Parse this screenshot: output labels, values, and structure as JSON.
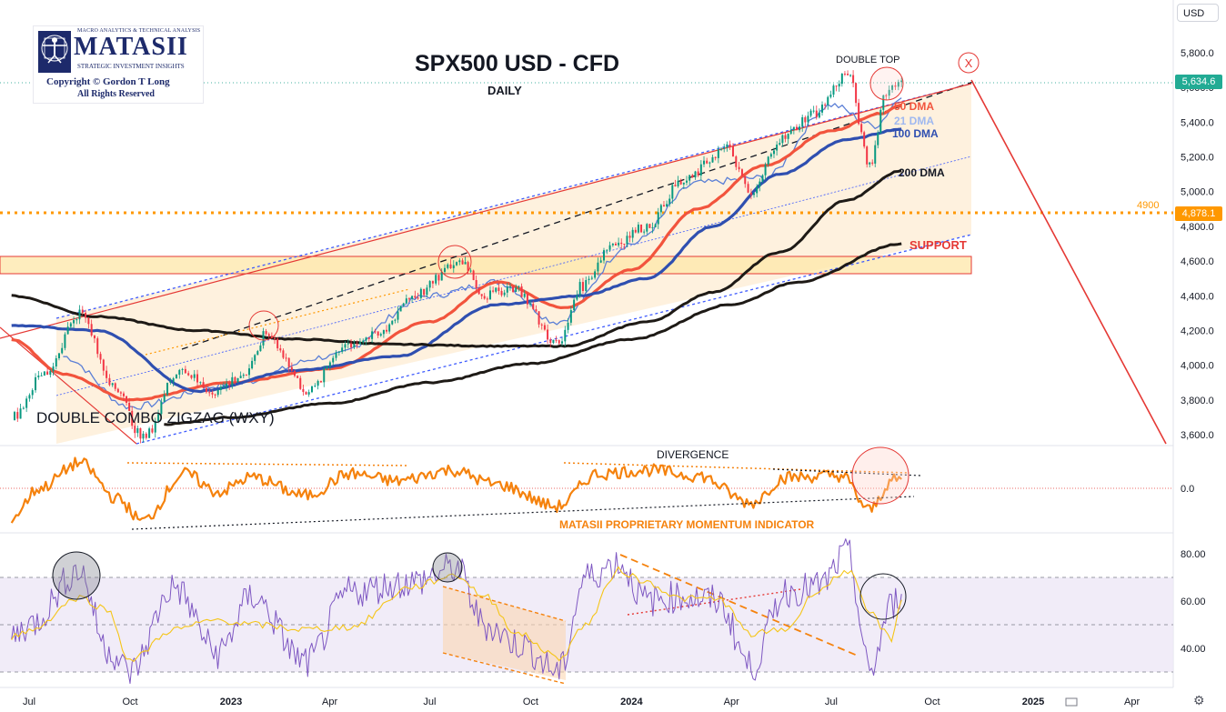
{
  "header": {
    "currency_selector": "USD"
  },
  "logo": {
    "tagline": "MACRO ANALYTICS & TECHNICAL ANALYSIS",
    "brand": "MATASII",
    "subtitle": "STRATEGIC INVESTMENT INSIGHTS",
    "copyright": "Copyright © Gordon T Long",
    "rights": "All Rights Reserved"
  },
  "colors": {
    "price_up": "#089981",
    "price_down": "#f23645",
    "dma21": "#5b7fd6",
    "dma50": "#f2543d",
    "dma100": "#2f4fb0",
    "dma200": "#1e1a16",
    "momentum": "#f5820d",
    "rsi": "#7e57c2",
    "rsi_signal": "#f5c518",
    "channel": "#3d5afe",
    "support": "#ff9800",
    "annotation_red": "#e53935"
  },
  "annotations": {
    "double_top": "DOUBLE TOP",
    "x_marker": "X",
    "dma50": "50 DMA",
    "dma21": "21 DMA",
    "dma100": "100 DMA",
    "dma200": "200 DMA",
    "support": "SUPPORT",
    "level_4900": "4900",
    "wave_label": "DOUBLE COMBO ZIGZAG (WXY)",
    "divergence": "DIVERGENCE",
    "momentum_name": "MATASII PROPRIETARY MOMENTUM INDICATOR"
  },
  "chart_data": [
    {
      "type": "line",
      "title": "SPX500 USD - CFD",
      "subtitle": "DAILY",
      "xlabel": "",
      "ylabel": "",
      "x_ticks": [
        "Jul",
        "Oct",
        "2023",
        "Apr",
        "Jul",
        "Oct",
        "2024",
        "Apr",
        "Jul",
        "Oct",
        "2025",
        "Apr"
      ],
      "y_ticks": [
        "5,800.0",
        "5,600.0",
        "5,400.0",
        "5,200.0",
        "5,000.0",
        "4,800.0",
        "4,600.0",
        "4,400.0",
        "4,200.0",
        "4,000.0",
        "3,800.0",
        "3,600.0"
      ],
      "ylim": [
        3600,
        5800
      ],
      "current_price": "5,634.6",
      "marked_level": "4,878.1",
      "series": [
        {
          "name": "price",
          "x": [
            "2022-06-15",
            "2022-07-15",
            "2022-08-16",
            "2022-09-15",
            "2022-10-13",
            "2022-11-15",
            "2022-12-15",
            "2023-01-15",
            "2023-02-02",
            "2023-03-13",
            "2023-04-15",
            "2023-05-15",
            "2023-06-15",
            "2023-07-31",
            "2023-08-20",
            "2023-09-15",
            "2023-10-27",
            "2023-11-15",
            "2023-12-15",
            "2024-01-15",
            "2024-02-15",
            "2024-03-28",
            "2024-04-19",
            "2024-05-15",
            "2024-06-15",
            "2024-07-16",
            "2024-08-05",
            "2024-08-20",
            "2024-09-03"
          ],
          "values": [
            3700,
            3950,
            4300,
            3900,
            3580,
            3980,
            3850,
            3950,
            4180,
            3850,
            4120,
            4170,
            4400,
            4600,
            4400,
            4450,
            4120,
            4450,
            4700,
            4800,
            5050,
            5250,
            4980,
            5300,
            5450,
            5680,
            5150,
            5580,
            5640
          ]
        },
        {
          "name": "21 DMA",
          "x": [
            "2022-08-01",
            "2022-10-01",
            "2023-01-01",
            "2023-04-01",
            "2023-07-01",
            "2023-09-01",
            "2023-10-25",
            "2024-01-01",
            "2024-03-01",
            "2024-05-01",
            "2024-07-01",
            "2024-08-10",
            "2024-09-03"
          ],
          "values": [
            4050,
            3760,
            3890,
            4050,
            4400,
            4480,
            4250,
            4700,
            5050,
            5080,
            5500,
            5380,
            5540
          ]
        },
        {
          "name": "50 DMA",
          "x": [
            "2022-06-15",
            "2022-08-01",
            "2022-10-01",
            "2023-01-01",
            "2023-04-01",
            "2023-07-01",
            "2023-09-01",
            "2023-11-01",
            "2024-01-01",
            "2024-03-01",
            "2024-05-01",
            "2024-07-01",
            "2024-08-15",
            "2024-09-03"
          ],
          "values": [
            4150,
            3950,
            3800,
            3900,
            3980,
            4250,
            4480,
            4330,
            4550,
            4900,
            5150,
            5350,
            5450,
            5500
          ]
        },
        {
          "name": "100 DMA",
          "x": [
            "2022-06-15",
            "2022-09-01",
            "2022-12-01",
            "2023-03-01",
            "2023-06-01",
            "2023-09-01",
            "2023-11-15",
            "2024-01-15",
            "2024-03-15",
            "2024-05-15",
            "2024-07-15",
            "2024-09-03"
          ],
          "values": [
            4230,
            4200,
            3850,
            3970,
            4050,
            4350,
            4400,
            4500,
            4800,
            5100,
            5300,
            5360
          ]
        },
        {
          "name": "200 DMA",
          "x": [
            "2022-06-15",
            "2022-09-01",
            "2022-12-01",
            "2023-03-01",
            "2023-06-01",
            "2023-09-01",
            "2023-11-01",
            "2024-01-15",
            "2024-03-15",
            "2024-05-15",
            "2024-07-15",
            "2024-09-03"
          ],
          "values": [
            4400,
            4280,
            4200,
            4150,
            4120,
            4110,
            4110,
            4250,
            4420,
            4650,
            4950,
            5120
          ]
        },
        {
          "name": "200 DMA (Support)",
          "x": [
            "2022-11-01",
            "2023-01-01",
            "2023-04-01",
            "2023-07-01",
            "2023-10-01",
            "2024-01-01",
            "2024-04-01",
            "2024-06-01",
            "2024-09-03"
          ],
          "values": [
            3660,
            3700,
            3780,
            3900,
            4010,
            4150,
            4350,
            4480,
            4700
          ]
        }
      ]
    },
    {
      "type": "line",
      "title": "MATASII PROPRIETARY MOMENTUM INDICATOR",
      "y_ticks": [
        "0.0"
      ],
      "x": [
        "2022-06-15",
        "2022-07-10",
        "2022-08-16",
        "2022-09-20",
        "2022-10-12",
        "2022-11-20",
        "2022-12-20",
        "2023-01-20",
        "2023-03-10",
        "2023-04-20",
        "2023-06-01",
        "2023-07-20",
        "2023-09-01",
        "2023-10-25",
        "2023-12-01",
        "2024-01-15",
        "2024-03-01",
        "2024-04-19",
        "2024-05-20",
        "2024-07-10",
        "2024-08-05",
        "2024-08-25",
        "2024-09-03"
      ],
      "values": [
        -0.8,
        0.0,
        0.7,
        -0.3,
        -0.9,
        0.4,
        -0.1,
        0.3,
        -0.2,
        0.4,
        0.2,
        0.5,
        0.1,
        -0.5,
        0.4,
        0.5,
        0.35,
        -0.4,
        0.3,
        0.35,
        -0.6,
        0.2,
        0.25
      ]
    },
    {
      "type": "line",
      "title": "",
      "y_ticks": [
        "80.00",
        "60.00",
        "40.00"
      ],
      "ylim": [
        25,
        85
      ],
      "x": [
        "2022-06-15",
        "2022-07-01",
        "2022-08-16",
        "2022-09-10",
        "2022-10-01",
        "2022-11-10",
        "2022-12-20",
        "2023-01-20",
        "2023-03-10",
        "2023-04-20",
        "2023-06-15",
        "2023-07-25",
        "2023-08-20",
        "2023-09-20",
        "2023-10-27",
        "2023-11-20",
        "2023-12-20",
        "2024-01-15",
        "2024-02-15",
        "2024-03-20",
        "2024-04-19",
        "2024-05-20",
        "2024-06-20",
        "2024-07-16",
        "2024-08-05",
        "2024-08-25",
        "2024-09-03"
      ],
      "values": [
        45,
        50,
        73,
        40,
        30,
        66,
        38,
        62,
        34,
        64,
        68,
        74,
        50,
        42,
        30,
        70,
        76,
        60,
        62,
        60,
        32,
        64,
        66,
        80,
        30,
        58,
        63
      ]
    }
  ]
}
